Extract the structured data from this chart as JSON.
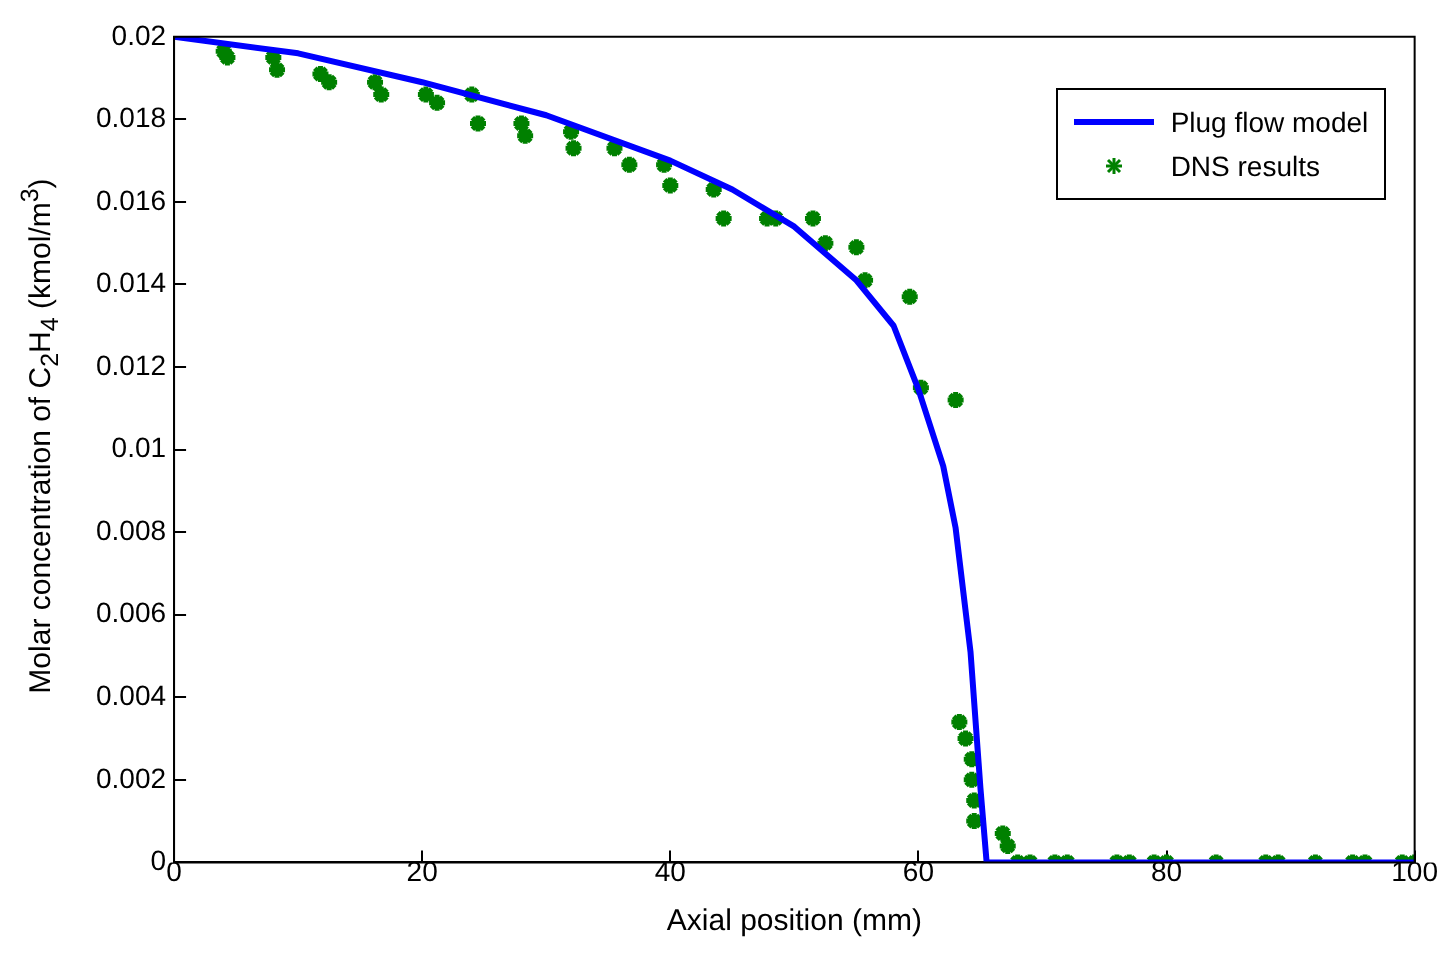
{
  "chart_data": {
    "type": "line",
    "xlabel": "Axial position (mm)",
    "ylabel": "Molar concentration of C$_{2}$H$_{4}$ (kmol/m$^{3}$)",
    "xlim": [
      0,
      100
    ],
    "ylim": [
      0,
      0.02
    ],
    "xticks": [
      0,
      20,
      40,
      60,
      80,
      100
    ],
    "yticks": [
      0,
      0.002,
      0.004,
      0.006,
      0.008,
      0.01,
      0.012,
      0.014,
      0.016,
      0.018,
      0.02
    ],
    "grid": false,
    "legend": "top right",
    "series": [
      {
        "name": "Plug flow model",
        "color": "#0000ff",
        "marker": "none",
        "line_style": "solid",
        "x": [
          0,
          10,
          20,
          30,
          40,
          45,
          50,
          55,
          58,
          60,
          62,
          63,
          64.2,
          65,
          65.5,
          100
        ],
        "values": [
          0.02,
          0.0196,
          0.0189,
          0.0181,
          0.017,
          0.0163,
          0.0154,
          0.0141,
          0.013,
          0.01146,
          0.0096,
          0.0081,
          0.0051,
          0.0018,
          0,
          0
        ]
      },
      {
        "name": "DNS results",
        "type": "scatter",
        "color": "#008000",
        "marker": "cross",
        "x": [
          4,
          4.3,
          8,
          8.3,
          11.8,
          12.5,
          16.2,
          16.7,
          20.3,
          21.2,
          24,
          24.5,
          28,
          28.3,
          32,
          32.2,
          35.5,
          36.7,
          39.5,
          40,
          43.5,
          44.3,
          47.8,
          48.5,
          51.5,
          52.5,
          55,
          55.7,
          59.3,
          60.2,
          63,
          63.3,
          63.8,
          64.3,
          64.3,
          64.5,
          64.5,
          66.8,
          67.2,
          68,
          69,
          71,
          72,
          76,
          77,
          79,
          80,
          84,
          88,
          89,
          92,
          95,
          96,
          99,
          100
        ],
        "values": [
          0.01965,
          0.0195,
          0.0195,
          0.0192,
          0.0191,
          0.0189,
          0.0189,
          0.0186,
          0.0186,
          0.0184,
          0.0186,
          0.0179,
          0.0179,
          0.0176,
          0.0177,
          0.0173,
          0.0173,
          0.0169,
          0.0169,
          0.0164,
          0.0163,
          0.0156,
          0.0156,
          0.0156,
          0.0156,
          0.015,
          0.0149,
          0.0141,
          0.0137,
          0.0115,
          0.0112,
          0.0034,
          0.003,
          0.0025,
          0.002,
          0.0015,
          0.001,
          0.0007,
          0.0004,
          0,
          0,
          0,
          0,
          0,
          0,
          0,
          0,
          0,
          0,
          0,
          0,
          0,
          0,
          0,
          0
        ]
      }
    ]
  }
}
